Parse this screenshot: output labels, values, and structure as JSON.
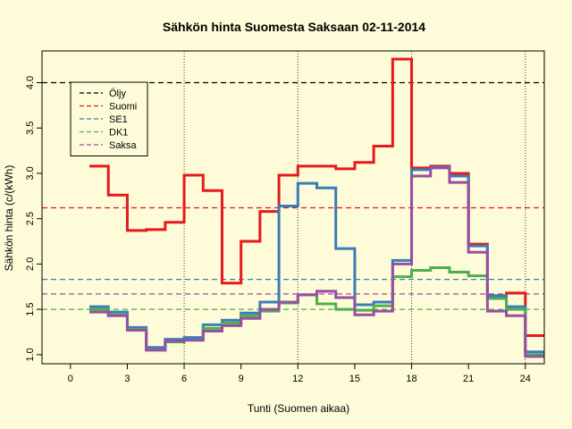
{
  "chart_data": {
    "type": "line",
    "title": "Sähkön hinta Suomesta Saksaan 02-11-2014",
    "xlabel": "Tunti (Suomen aikaa)",
    "ylabel": "Sähkön hinta (c/(kWh)",
    "xlim": [
      -1.5,
      25
    ],
    "ylim": [
      0.9,
      4.35
    ],
    "x_ticks": [
      0,
      3,
      6,
      9,
      12,
      15,
      18,
      21,
      24
    ],
    "y_ticks": [
      1.0,
      1.5,
      2.0,
      2.5,
      3.0,
      3.5,
      4.0
    ],
    "y_tick_labels": [
      "1.0",
      "1.5",
      "2.0",
      "2.5",
      "3.0",
      "3.5",
      "4.0"
    ],
    "vlines": [
      6,
      12,
      18,
      24
    ],
    "hours": [
      1,
      2,
      3,
      4,
      5,
      6,
      7,
      8,
      9,
      10,
      11,
      12,
      13,
      14,
      15,
      16,
      17,
      18,
      19,
      20,
      21,
      22,
      23,
      24
    ],
    "series": [
      {
        "name": "Suomi",
        "color": "#e41a1c",
        "values": [
          3.08,
          2.76,
          2.37,
          2.38,
          2.46,
          2.98,
          2.81,
          1.79,
          2.25,
          2.58,
          2.98,
          3.08,
          3.08,
          3.05,
          3.12,
          3.3,
          4.26,
          3.06,
          3.08,
          3.0,
          2.22,
          1.65,
          1.68,
          1.21
        ]
      },
      {
        "name": "SE1",
        "color": "#377eb8",
        "values": [
          1.53,
          1.47,
          1.3,
          1.08,
          1.17,
          1.19,
          1.33,
          1.38,
          1.46,
          1.58,
          2.64,
          2.89,
          2.84,
          2.17,
          1.55,
          1.58,
          2.04,
          3.04,
          3.07,
          2.97,
          2.2,
          1.65,
          1.53,
          1.03
        ]
      },
      {
        "name": "DK1",
        "color": "#4daf4a",
        "values": [
          1.5,
          1.44,
          1.28,
          1.05,
          1.14,
          1.16,
          1.29,
          1.35,
          1.43,
          1.48,
          1.57,
          1.66,
          1.56,
          1.5,
          1.49,
          1.54,
          1.86,
          1.93,
          1.96,
          1.91,
          1.87,
          1.62,
          1.5,
          1.0
        ]
      },
      {
        "name": "Saksa",
        "color": "#984ea3",
        "values": [
          1.47,
          1.43,
          1.27,
          1.05,
          1.15,
          1.16,
          1.26,
          1.32,
          1.4,
          1.5,
          1.58,
          1.66,
          1.7,
          1.63,
          1.44,
          1.48,
          2.0,
          2.97,
          3.06,
          2.9,
          2.13,
          1.48,
          1.43,
          0.98
        ]
      }
    ],
    "reference_lines": [
      {
        "name": "Öljy",
        "value": 4.0,
        "color": "#000000"
      },
      {
        "name": "Suomi",
        "value": 2.62,
        "color": "#e41a1c"
      },
      {
        "name": "SE1",
        "value": 1.83,
        "color": "#377eb8"
      },
      {
        "name": "DK1",
        "value": 1.5,
        "color": "#4daf4a"
      },
      {
        "name": "Saksa",
        "value": 1.67,
        "color": "#984ea3"
      }
    ],
    "legend": {
      "placement": "top-left",
      "entries": [
        {
          "label": "Öljy",
          "color": "#000000"
        },
        {
          "label": "Suomi",
          "color": "#e41a1c"
        },
        {
          "label": "SE1",
          "color": "#377eb8"
        },
        {
          "label": "DK1",
          "color": "#4daf4a"
        },
        {
          "label": "Saksa",
          "color": "#984ea3"
        }
      ]
    },
    "background_color": "#fefbd8",
    "grid": false
  }
}
